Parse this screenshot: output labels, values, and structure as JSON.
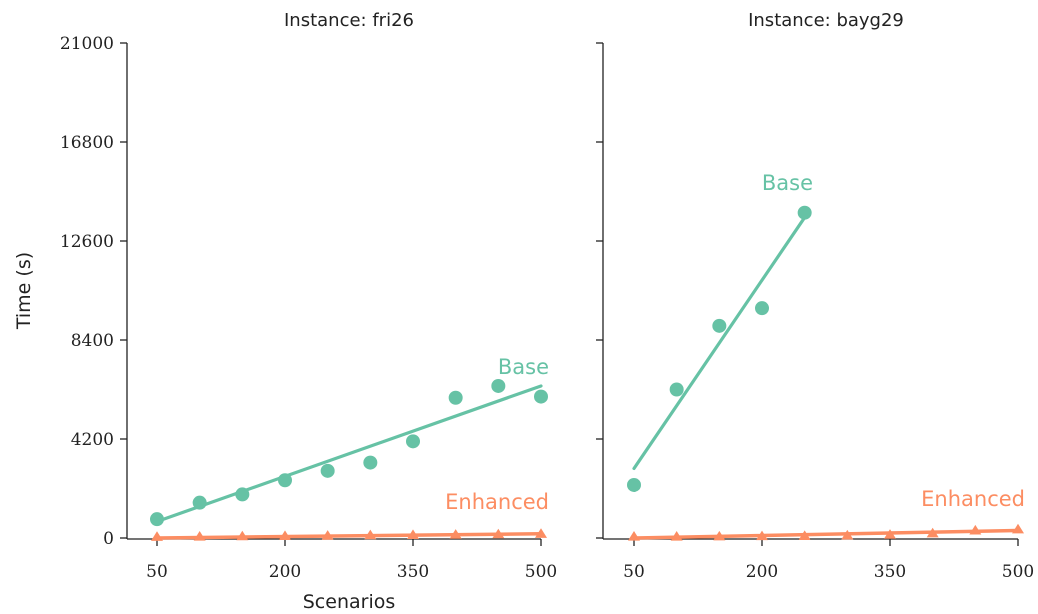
{
  "chart_data": [
    {
      "type": "scatter",
      "title": "Instance:  fri26",
      "xlabel": "Scenarios",
      "ylabel": "Time (s)",
      "x_ticks": [
        50,
        200,
        350,
        500
      ],
      "y_ticks": [
        "0",
        "4200",
        "8400",
        "12600",
        "16800",
        "21000"
      ],
      "xlim": [
        50,
        500
      ],
      "ylim": [
        0,
        21000
      ],
      "grid": false,
      "series": [
        {
          "name": "Base",
          "color": "#66c2a5",
          "marker": "circle",
          "x": [
            50,
            100,
            150,
            200,
            250,
            300,
            350,
            400,
            450,
            500
          ],
          "y": [
            800,
            1500,
            1850,
            2450,
            2850,
            3200,
            4100,
            5950,
            6450,
            6000
          ],
          "fit": {
            "x": [
              50,
              500
            ],
            "y": [
              700,
              6450
            ]
          }
        },
        {
          "name": "Enhanced",
          "color": "#fc8d62",
          "marker": "triangle",
          "x": [
            50,
            100,
            150,
            200,
            250,
            300,
            350,
            400,
            450,
            500
          ],
          "y": [
            30,
            40,
            55,
            70,
            80,
            100,
            110,
            120,
            140,
            160
          ],
          "fit": {
            "x": [
              50,
              500
            ],
            "y": [
              0,
              180
            ]
          }
        }
      ]
    },
    {
      "type": "scatter",
      "title": "Instance:  bayg29",
      "xlabel": "",
      "ylabel": "",
      "x_ticks": [
        50,
        200,
        350,
        500
      ],
      "xlim": [
        50,
        500
      ],
      "ylim": [
        0,
        21000
      ],
      "grid": false,
      "series": [
        {
          "name": "Base",
          "color": "#66c2a5",
          "marker": "circle",
          "x": [
            50,
            100,
            150,
            200,
            250
          ],
          "y": [
            2250,
            6300,
            9000,
            9750,
            13800
          ],
          "fit": {
            "x": [
              50,
              250
            ],
            "y": [
              2950,
              13600
            ]
          }
        },
        {
          "name": "Enhanced",
          "color": "#fc8d62",
          "marker": "triangle",
          "x": [
            50,
            100,
            150,
            200,
            250,
            300,
            350,
            400,
            450,
            500
          ],
          "y": [
            40,
            40,
            50,
            60,
            70,
            90,
            120,
            180,
            300,
            350
          ],
          "fit": {
            "x": [
              50,
              500
            ],
            "y": [
              0,
              320
            ]
          }
        }
      ]
    }
  ]
}
